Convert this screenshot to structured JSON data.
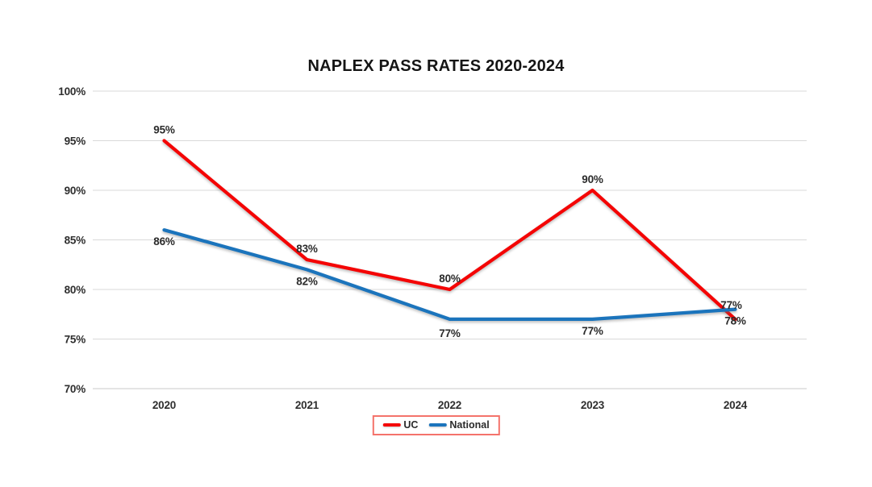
{
  "chart_data": {
    "type": "line",
    "title": "NAPLEX PASS RATES 2020-2024",
    "categories": [
      "2020",
      "2021",
      "2022",
      "2023",
      "2024"
    ],
    "series": [
      {
        "name": "UC",
        "color": "#F40505",
        "values": [
          95,
          83,
          80,
          90,
          77
        ],
        "labels": [
          "95%",
          "83%",
          "80%",
          "90%",
          "77%"
        ],
        "label_position": "above"
      },
      {
        "name": "National",
        "color": "#1B74BC",
        "values": [
          86,
          82,
          77,
          77,
          78
        ],
        "labels": [
          "86%",
          "82%",
          "77%",
          "77%",
          "78%"
        ],
        "label_position": "below"
      }
    ],
    "xlabel": "",
    "ylabel": "",
    "ylim": [
      70,
      100
    ],
    "y_tick_step": 5,
    "y_tick_labels": [
      "100%",
      "95%",
      "90%",
      "85%",
      "80%",
      "75%",
      "70%"
    ],
    "y_tick_values": [
      100,
      95,
      90,
      85,
      80,
      75,
      70
    ],
    "value_suffix": "%",
    "grid": true,
    "gridline_color": "#D9D9D9",
    "axis_line_color": "#C8C8C8",
    "text_color": "#2E2E2E",
    "legend_position": "bottom-center",
    "legend_entries": [
      "UC",
      "National"
    ],
    "legend_border_color": "#F4736B",
    "background_color": "#FFFFFF"
  }
}
